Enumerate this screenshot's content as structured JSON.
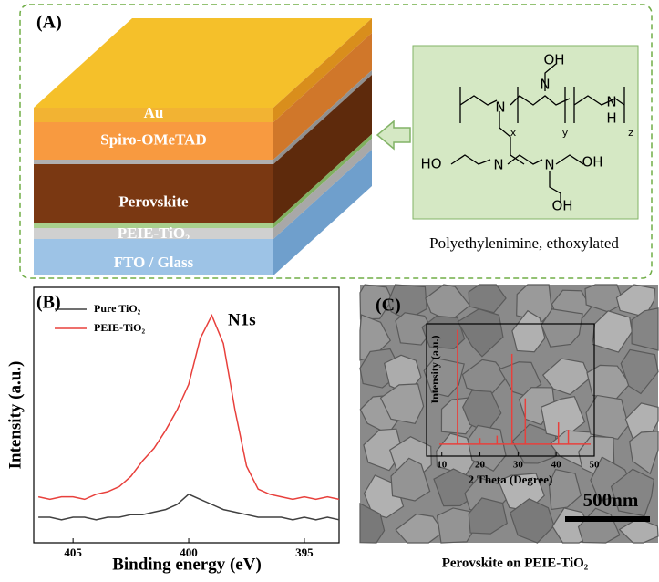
{
  "panel_a": {
    "label": "(A)",
    "layers": [
      "Au",
      "Spiro-OMeTAD",
      "Perovskite",
      "PEIE-TiO₂",
      "FTO / Glass"
    ],
    "structure_labels": [
      "OH",
      "N",
      "N",
      "x",
      "y",
      "N",
      "H",
      "z",
      "HO",
      "N",
      "N",
      "OH",
      "OH"
    ],
    "molecule_name": "Polyethylenimine, ethoxylated"
  },
  "chart_data": [
    {
      "type": "line",
      "label": "(B)",
      "annotation": "N1s",
      "xlabel": "Binding energy (eV)",
      "ylabel": "Intensity (a.u.)",
      "xlim": [
        406.7,
        393.5
      ],
      "xticks": [
        405,
        400,
        395
      ],
      "ylim": [
        0,
        1
      ],
      "x": [
        406.5,
        406,
        405.5,
        405,
        404.5,
        404,
        403.5,
        403,
        402.5,
        402,
        401.5,
        401,
        400.5,
        400,
        399.5,
        399,
        398.5,
        398,
        397.5,
        397,
        396.5,
        396,
        395.5,
        395,
        394.5,
        394,
        393.5
      ],
      "series": [
        {
          "name": "Pure TiO₂",
          "color": "#404040",
          "values": [
            0.1,
            0.1,
            0.09,
            0.1,
            0.1,
            0.09,
            0.1,
            0.1,
            0.11,
            0.11,
            0.12,
            0.13,
            0.15,
            0.19,
            0.17,
            0.15,
            0.13,
            0.12,
            0.11,
            0.1,
            0.1,
            0.1,
            0.09,
            0.1,
            0.09,
            0.1,
            0.09
          ]
        },
        {
          "name": "PEIE-TiO₂",
          "color": "#e8403c",
          "values": [
            0.18,
            0.17,
            0.18,
            0.18,
            0.17,
            0.19,
            0.2,
            0.22,
            0.26,
            0.32,
            0.37,
            0.44,
            0.52,
            0.62,
            0.8,
            0.89,
            0.78,
            0.52,
            0.3,
            0.21,
            0.19,
            0.18,
            0.17,
            0.18,
            0.17,
            0.18,
            0.17
          ]
        }
      ]
    },
    {
      "type": "stem",
      "xlabel": "2 Theta (Degree)",
      "ylabel": "Intensity (a.u.)",
      "color": "#e8403c",
      "xlim": [
        6,
        50
      ],
      "xticks": [
        10,
        20,
        30,
        40,
        50
      ],
      "ylim": [
        -0.1,
        1
      ],
      "x": [
        14.1,
        20.0,
        24.5,
        28.4,
        31.9,
        40.6,
        43.2
      ],
      "values": [
        0.95,
        0.05,
        0.07,
        0.75,
        0.38,
        0.18,
        0.12
      ]
    }
  ],
  "panel_c": {
    "label": "(C)",
    "scale_bar": "500nm",
    "caption": "Perovskite on PEIE-TiO₂"
  }
}
